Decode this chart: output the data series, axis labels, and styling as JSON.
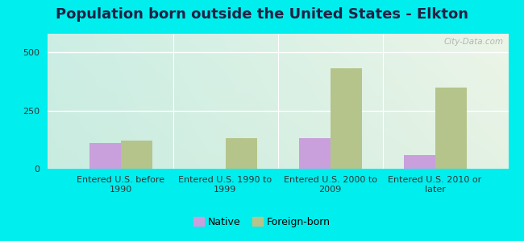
{
  "title": "Population born outside the United States - Elkton",
  "categories": [
    "Entered U.S. before\n1990",
    "Entered U.S. 1990 to\n1999",
    "Entered U.S. 2000 to\n2009",
    "Entered U.S. 2010 or\nlater"
  ],
  "native_values": [
    110,
    0,
    130,
    60
  ],
  "foreign_values": [
    120,
    130,
    430,
    350
  ],
  "native_color": "#c9a0dc",
  "foreign_color": "#b5c48a",
  "background_color": "#00eeee",
  "ylim": [
    0,
    580
  ],
  "yticks": [
    0,
    250,
    500
  ],
  "bar_width": 0.3,
  "legend_labels": [
    "Native",
    "Foreign-born"
  ],
  "watermark": "City-Data.com",
  "title_fontsize": 13,
  "title_color": "#222244",
  "tick_fontsize": 8,
  "legend_fontsize": 9,
  "grad_left_color": "#a8ddd8",
  "grad_right_color": "#e8f5e8",
  "grad_top_color": "#f5faf8",
  "grad_bottom_color": "#d0edd8"
}
